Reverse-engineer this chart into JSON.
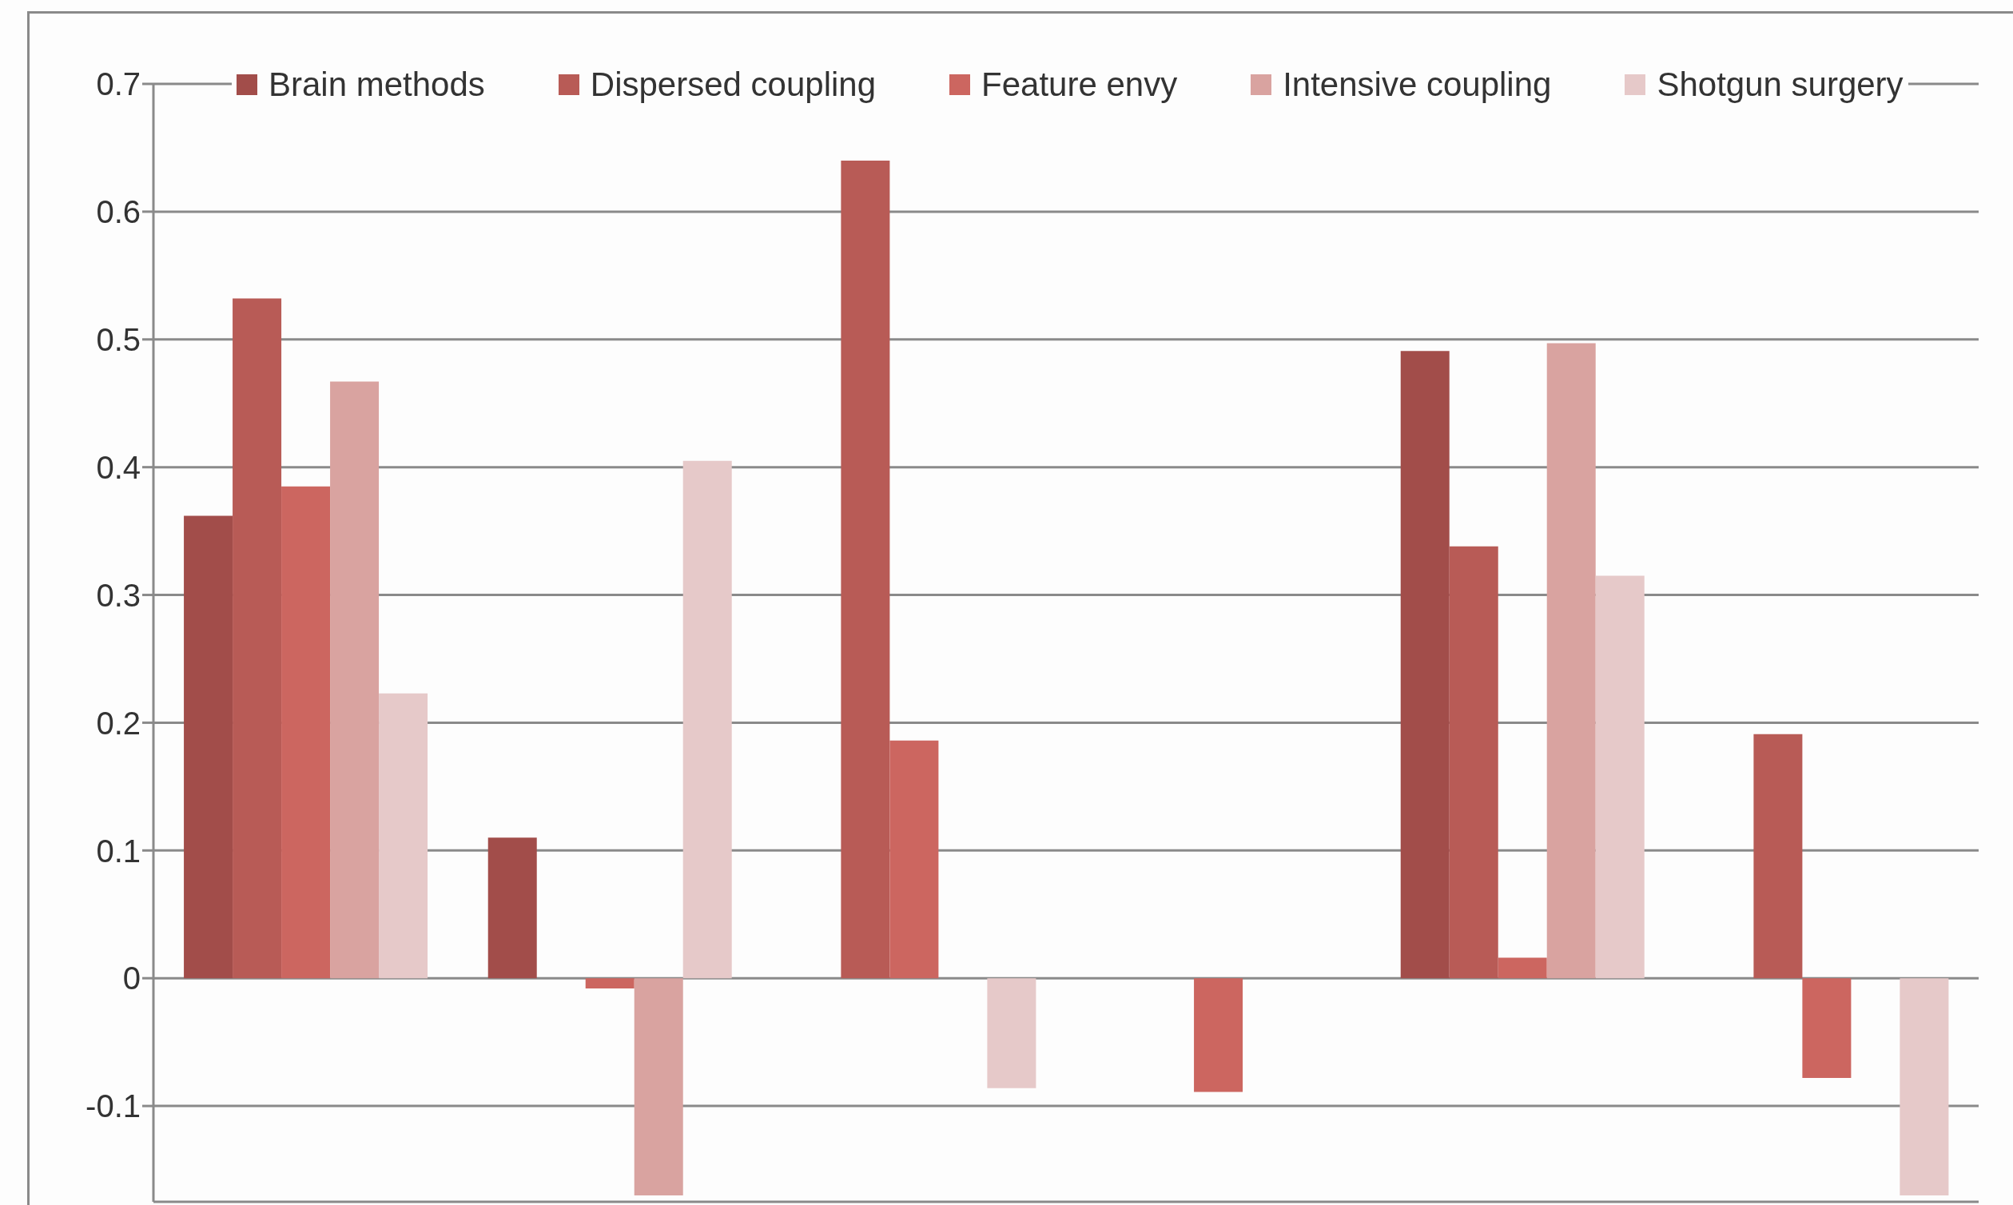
{
  "chart_data": {
    "type": "bar",
    "categories": [
      null,
      null,
      null,
      null,
      null,
      null
    ],
    "series": [
      {
        "name": "Brain methods",
        "color": "#a24d4a",
        "values": [
          0.362,
          0.11,
          null,
          null,
          0.491,
          null
        ]
      },
      {
        "name": "Dispersed coupling",
        "color": "#b85b56",
        "values": [
          0.532,
          null,
          0.64,
          null,
          0.338,
          0.191
        ]
      },
      {
        "name": "Feature envy",
        "color": "#cc6660",
        "values": [
          0.385,
          -0.008,
          0.186,
          -0.089,
          0.016,
          -0.078
        ]
      },
      {
        "name": "Intensive coupling",
        "color": "#d9a3a0",
        "values": [
          0.467,
          -0.17,
          null,
          null,
          0.497,
          null
        ]
      },
      {
        "name": "Shotgun surgery",
        "color": "#e6c9c9",
        "values": [
          0.223,
          0.405,
          -0.086,
          null,
          0.315,
          -0.17
        ]
      }
    ],
    "ylim": [
      -0.175,
      0.7
    ],
    "yticks": [
      -0.1,
      0,
      0.1,
      0.2,
      0.3,
      0.4,
      0.5,
      0.6,
      0.7
    ],
    "grid": "y",
    "legend": "top",
    "tick_labels": "y"
  }
}
